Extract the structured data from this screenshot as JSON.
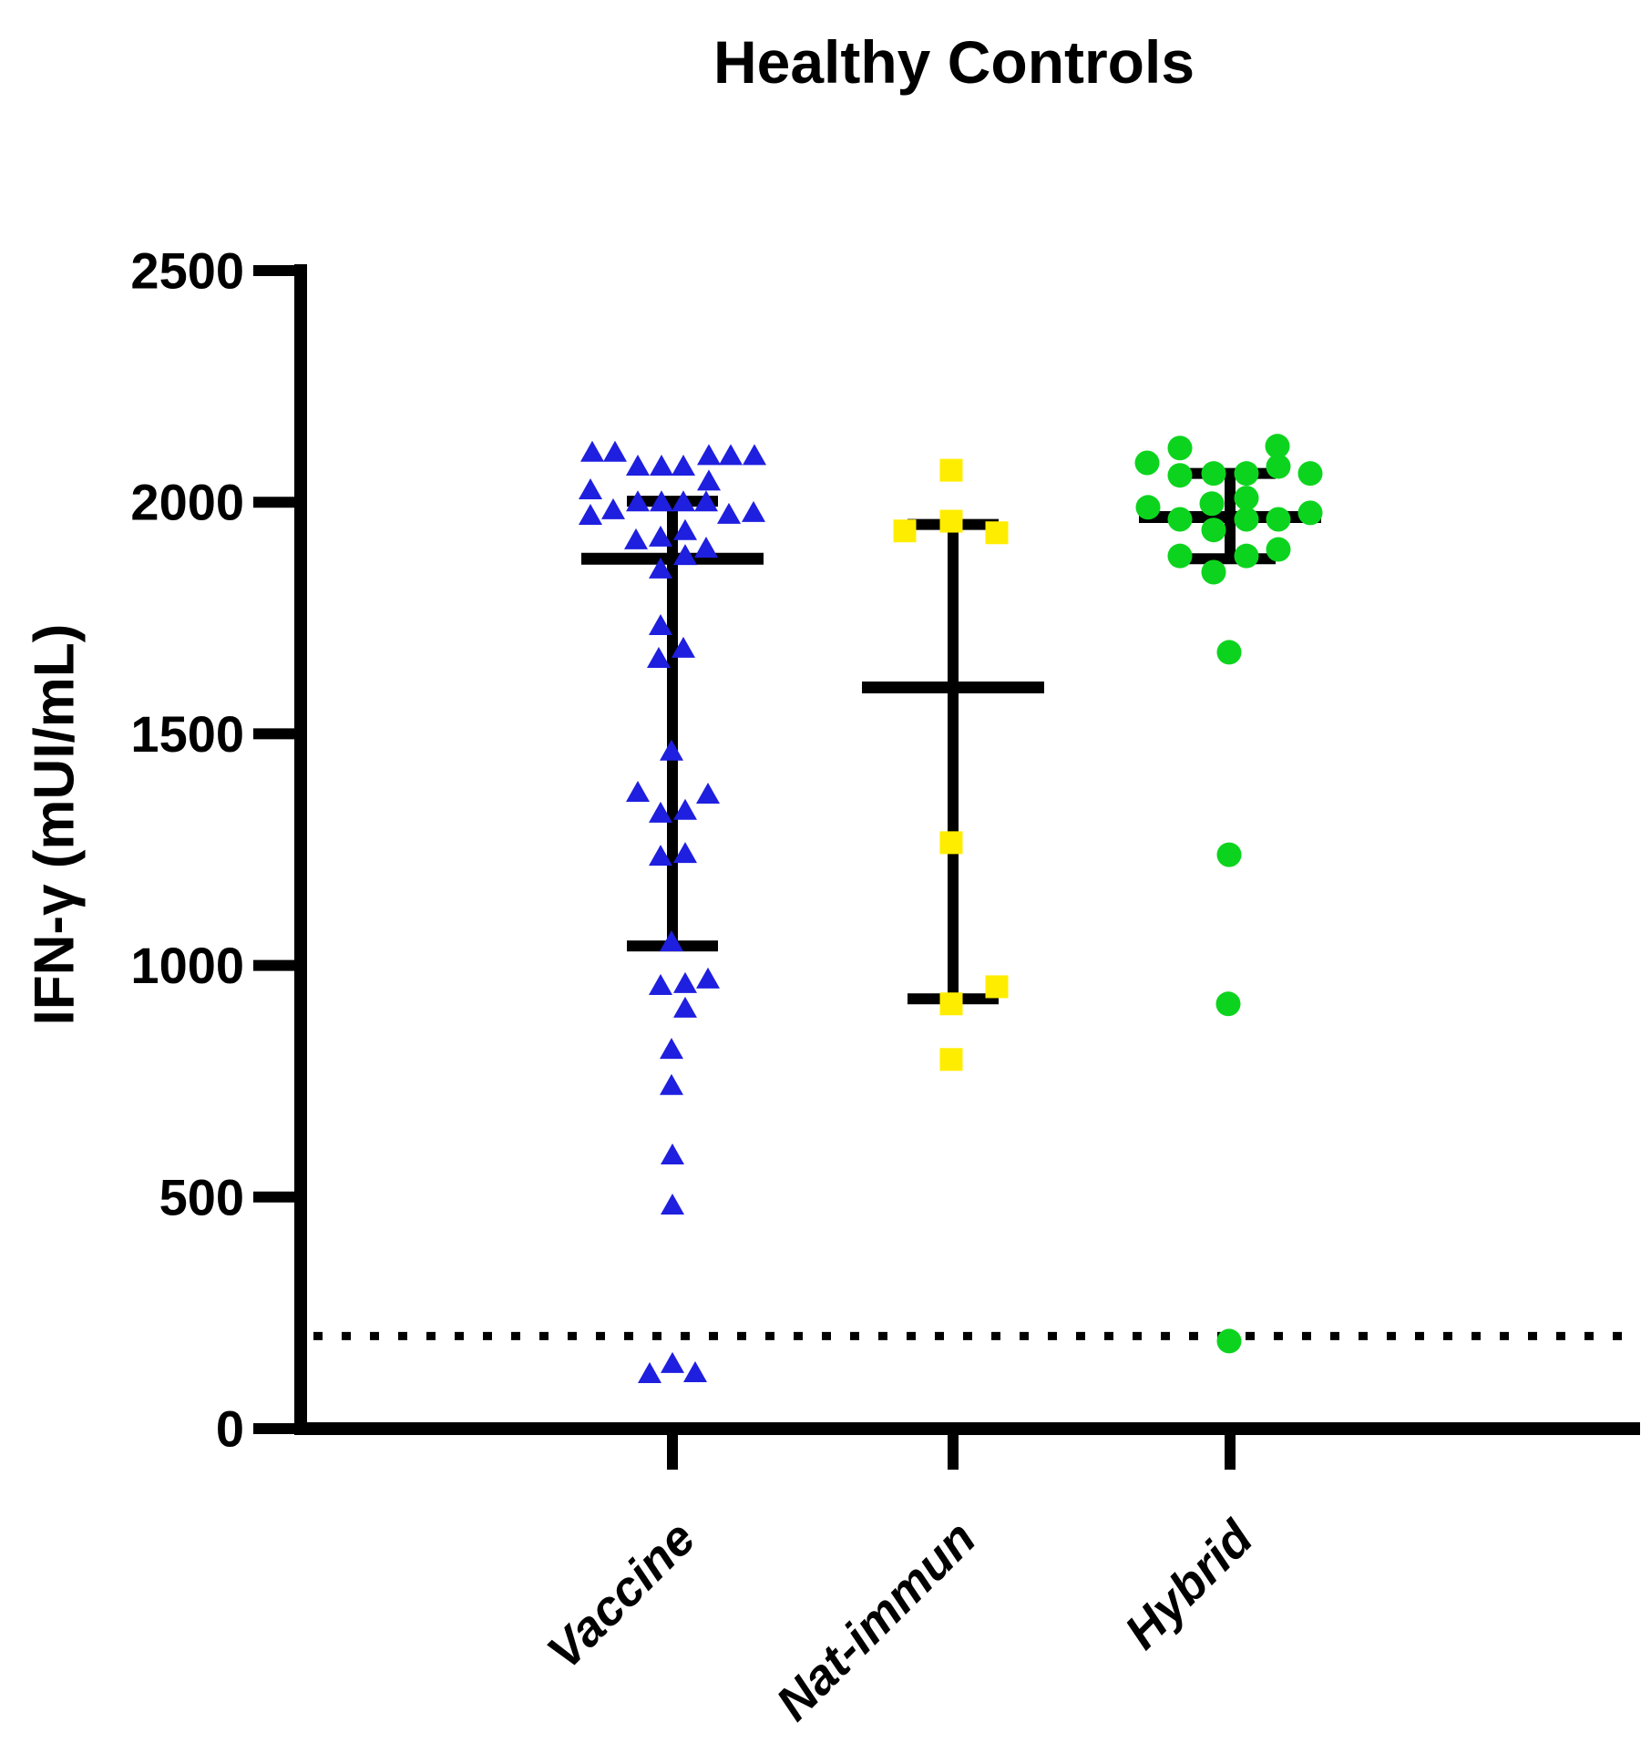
{
  "chart_data": {
    "type": "scatter",
    "title": "Healthy Controls",
    "ylabel": "IFN-γ (mUI/mL)",
    "xlabel": "",
    "ylim": [
      0,
      2500
    ],
    "yticks": [
      0,
      500,
      1000,
      1500,
      2000,
      2500
    ],
    "ytick_labels": [
      "0",
      "500",
      "1000",
      "1500",
      "2000",
      "2500"
    ],
    "grid": false,
    "legend": "none",
    "error_bars": "median with interquartile range",
    "cutoff_line": {
      "value": 200,
      "style": "dotted",
      "color": "#000000"
    },
    "groups": [
      {
        "label": "Vaccine",
        "marker": "triangle",
        "color": "#1F1FE0",
        "median": 1878,
        "q1": 1042,
        "q3": 2002,
        "points": [
          [
            -88,
            2107
          ],
          [
            -63,
            2107
          ],
          [
            -38,
            2077
          ],
          [
            -12,
            2077
          ],
          [
            12,
            2077
          ],
          [
            40,
            2100
          ],
          [
            64,
            2100
          ],
          [
            90,
            2100
          ],
          [
            40,
            2045
          ],
          [
            -90,
            2026
          ],
          [
            -38,
            2000
          ],
          [
            -12,
            2000
          ],
          [
            12,
            2000
          ],
          [
            37,
            2000
          ],
          [
            -65,
            1983
          ],
          [
            -90,
            1971
          ],
          [
            62,
            1973
          ],
          [
            89,
            1977
          ],
          [
            14,
            1938
          ],
          [
            -40,
            1918
          ],
          [
            -13,
            1924
          ],
          [
            37,
            1900
          ],
          [
            14,
            1884
          ],
          [
            -13,
            1855
          ],
          [
            -13,
            1733
          ],
          [
            12,
            1684
          ],
          [
            -15,
            1662
          ],
          [
            -1,
            1462
          ],
          [
            -38,
            1373
          ],
          [
            39,
            1369
          ],
          [
            14,
            1334
          ],
          [
            -13,
            1328
          ],
          [
            14,
            1241
          ],
          [
            -13,
            1235
          ],
          [
            -1,
            1050
          ],
          [
            -13,
            956
          ],
          [
            14,
            960
          ],
          [
            39,
            970
          ],
          [
            14,
            907
          ],
          [
            -1,
            818
          ],
          [
            -1,
            740
          ],
          [
            0,
            590
          ],
          [
            0,
            482
          ],
          [
            -25,
            118
          ],
          [
            0,
            140
          ],
          [
            25,
            120
          ]
        ]
      },
      {
        "label": "Nat-immun",
        "marker": "square",
        "color": "#FFED00",
        "median": 1600,
        "q1": 928,
        "q3": 1952,
        "points": [
          [
            -2,
            2069
          ],
          [
            -2,
            1959
          ],
          [
            -53,
            1938
          ],
          [
            48,
            1934
          ],
          [
            -2,
            1265
          ],
          [
            48,
            954
          ],
          [
            -2,
            917
          ],
          [
            -2,
            797
          ]
        ]
      },
      {
        "label": "Hybrid",
        "marker": "circle",
        "color": "#0CD41E",
        "median": 1968,
        "q1": 1878,
        "q3": 2062,
        "points": [
          [
            -91,
            2085
          ],
          [
            -55,
            2117
          ],
          [
            52,
            2121
          ],
          [
            -55,
            2058
          ],
          [
            -18,
            2062
          ],
          [
            18,
            2062
          ],
          [
            53,
            2077
          ],
          [
            88,
            2062
          ],
          [
            -90,
            1989
          ],
          [
            -20,
            1997
          ],
          [
            18,
            2009
          ],
          [
            -55,
            1963
          ],
          [
            18,
            1963
          ],
          [
            53,
            1963
          ],
          [
            88,
            1977
          ],
          [
            -18,
            1940
          ],
          [
            53,
            1898
          ],
          [
            -55,
            1884
          ],
          [
            18,
            1884
          ],
          [
            -18,
            1849
          ],
          [
            -1,
            1676
          ],
          [
            -1,
            1239
          ],
          [
            -2,
            917
          ],
          [
            -1,
            189
          ]
        ]
      }
    ],
    "axis_color": "#000000"
  }
}
